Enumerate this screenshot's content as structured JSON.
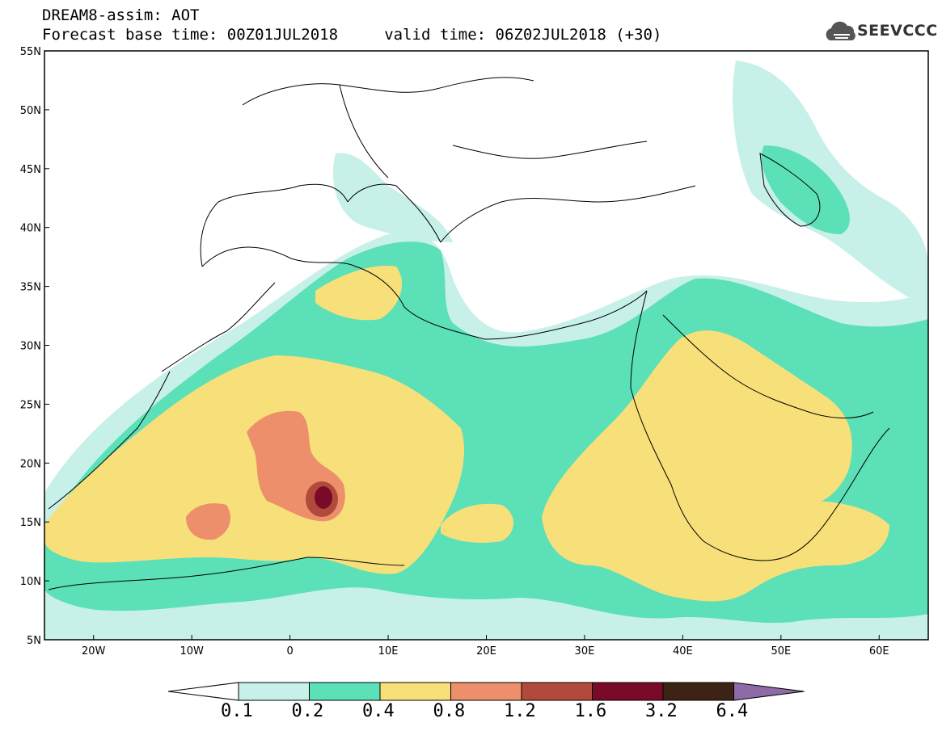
{
  "header": {
    "title": "DREAM8-assim: AOT",
    "subtitle": "Forecast base time: 00Z01JUL2018     valid time: 06Z02JUL2018 (+30)",
    "logo_text": "SEEVCCC"
  },
  "map": {
    "lon_range": [
      -25,
      65
    ],
    "lat_range": [
      5,
      55
    ],
    "lat_labels": [
      "55N",
      "50N",
      "45N",
      "40N",
      "35N",
      "30N",
      "25N",
      "20N",
      "15N",
      "10N",
      "5N"
    ],
    "lon_labels": [
      "20W",
      "10W",
      "0",
      "10E",
      "20E",
      "30E",
      "40E",
      "50E",
      "60E"
    ],
    "variable": "AOT"
  },
  "colorbar": {
    "labels": [
      "0.1",
      "0.2",
      "0.4",
      "0.8",
      "1.2",
      "1.6",
      "3.2",
      "6.4"
    ],
    "colors": [
      "#ffffff",
      "#c7f0e8",
      "#5be0b8",
      "#f7e07a",
      "#ec8f6a",
      "#b24a3c",
      "#7a0a2a",
      "#3d2316",
      "#8e6aa6"
    ]
  }
}
